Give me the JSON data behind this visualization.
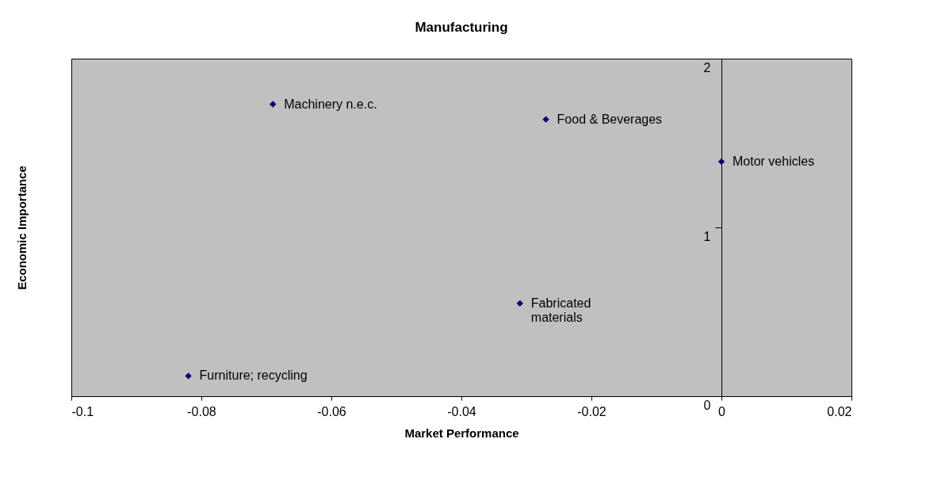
{
  "chart_data": {
    "type": "scatter",
    "title": "Manufacturing",
    "xlabel": "Market Performance",
    "ylabel": "Economic Importance",
    "x": [
      -0.069,
      -0.027,
      0,
      -0.031,
      -0.082
    ],
    "series": [
      {
        "color": "#000080",
        "values": [
          1.73,
          1.64,
          1.39,
          0.55,
          0.12
        ]
      }
    ],
    "annotations": [
      {
        "text": "Machinery n.e.c.",
        "x": -0.069,
        "y": 1.73
      },
      {
        "text": "Food & Beverages",
        "x": -0.027,
        "y": 1.64
      },
      {
        "text": "Motor vehicles",
        "x": 0,
        "y": 1.39
      },
      {
        "text": "Fabricated\nmaterials",
        "x": -0.031,
        "y": 0.55
      },
      {
        "text": "Furniture; recycling",
        "x": -0.082,
        "y": 0.12
      }
    ],
    "xlim": [
      -0.1,
      0.02
    ],
    "xticks": [
      -0.1,
      -0.08,
      -0.06,
      -0.04,
      -0.02,
      0,
      0.02
    ],
    "ylim": [
      0,
      2
    ],
    "yticks": [
      0,
      1,
      2
    ],
    "marker": "diamond",
    "grid": false
  }
}
